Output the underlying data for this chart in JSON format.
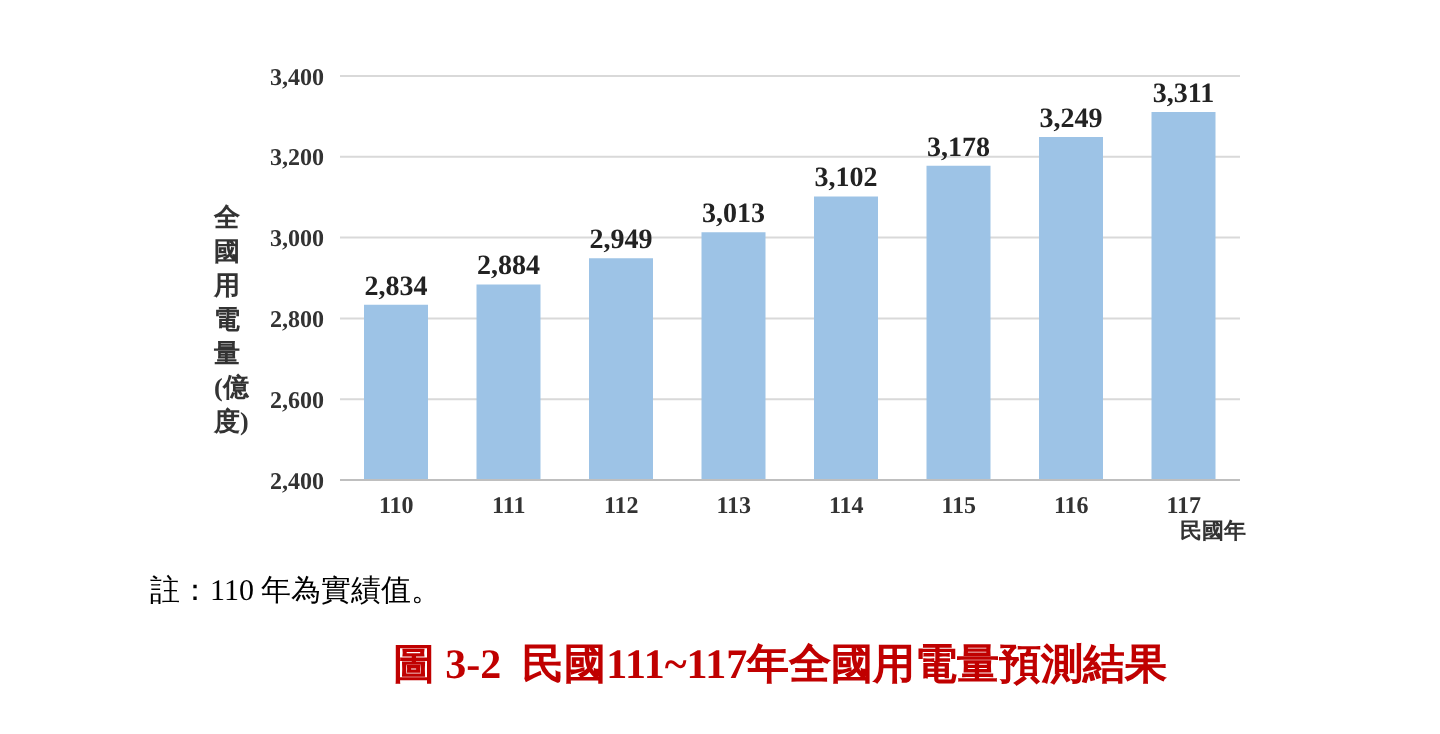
{
  "chart_data": {
    "type": "bar",
    "title": "圖 3-2  民國111~117年全國用電量預測結果",
    "ylabel": "全國用電量(億度)",
    "xlabel": "民國年",
    "annotations": [
      "註：110 年為實績值。"
    ],
    "categories": [
      "110",
      "111",
      "112",
      "113",
      "114",
      "115",
      "116",
      "117"
    ],
    "values": [
      2834,
      2884,
      2949,
      3013,
      3102,
      3178,
      3249,
      3311
    ],
    "value_labels": [
      "2,834",
      "2,884",
      "2,949",
      "3,013",
      "3,102",
      "3,178",
      "3,249",
      "3,311"
    ],
    "color": "#9dc3e6",
    "ylim": [
      2400,
      3400
    ],
    "yticks": [
      {
        "value": 2400,
        "label": "2,400"
      },
      {
        "value": 2600,
        "label": "2,600"
      },
      {
        "value": 2800,
        "label": "2,800"
      },
      {
        "value": 3000,
        "label": "3,000"
      },
      {
        "value": 3200,
        "label": "3,200"
      },
      {
        "value": 3400,
        "label": "3,400"
      }
    ],
    "grid": "y"
  }
}
